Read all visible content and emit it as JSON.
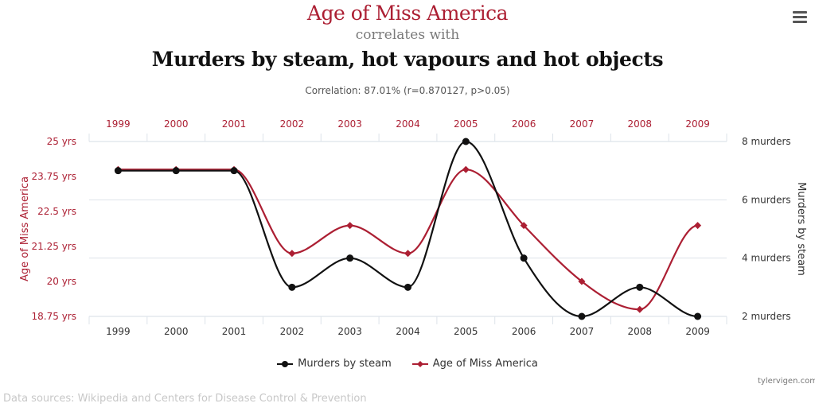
{
  "header": {
    "title_primary": "Age of Miss America",
    "connector": "correlates with",
    "title_secondary": "Murders by steam, hot vapours and hot objects",
    "correlation": "Correlation: 87.01% (r=0.870127, p>0.05)"
  },
  "menu": {
    "icon": "hamburger-menu-icon"
  },
  "colors": {
    "miss_america": "#ac1f33",
    "murders": "#111111",
    "grid": "#dde3ea",
    "axis_red_text": "#ac1f33",
    "axis_dark_text": "#333333"
  },
  "legend": {
    "items": [
      {
        "label": "Murders by steam",
        "color": "#111111",
        "marker": "circle"
      },
      {
        "label": "Age of Miss America",
        "color": "#ac1f33",
        "marker": "diamond"
      }
    ]
  },
  "footer": {
    "sources": "Data sources: Wikipedia and Centers for Disease Control & Prevention",
    "site": "tylervigen.com"
  },
  "chart_data": {
    "type": "line",
    "title": "Age of Miss America correlates with Murders by steam, hot vapours and hot objects",
    "subtitle": "Correlation: 87.01% (r=0.870127, p>0.05)",
    "categories": [
      "1999",
      "2000",
      "2001",
      "2002",
      "2003",
      "2004",
      "2005",
      "2006",
      "2007",
      "2008",
      "2009"
    ],
    "series": [
      {
        "name": "Murders by steam",
        "axis": "right",
        "color": "#111111",
        "values": [
          7,
          7,
          7,
          3,
          4,
          3,
          8,
          4,
          2,
          3,
          2
        ]
      },
      {
        "name": "Age of Miss America",
        "axis": "left",
        "color": "#ac1f33",
        "values": [
          24,
          24,
          24,
          21,
          22,
          21,
          24,
          22,
          20,
          19,
          22
        ]
      }
    ],
    "left_axis": {
      "label": "Age of Miss America",
      "range": [
        18.75,
        25
      ],
      "ticks": [
        25,
        23.75,
        22.5,
        21.25,
        20,
        18.75
      ],
      "tick_labels": [
        "25 yrs",
        "23.75 yrs",
        "22.5 yrs",
        "21.25 yrs",
        "20 yrs",
        "18.75 yrs"
      ]
    },
    "right_axis": {
      "label": "Murders by steam",
      "range": [
        2,
        8
      ],
      "ticks": [
        8,
        6,
        4,
        2
      ],
      "tick_labels": [
        "8 murders",
        "6 murders",
        "4 murders",
        "2 murders"
      ]
    },
    "x_axis_top_labels": [
      "1999",
      "2000",
      "2001",
      "2002",
      "2003",
      "2004",
      "2005",
      "2006",
      "2007",
      "2008",
      "2009"
    ],
    "x_axis_bottom_labels": [
      "1999",
      "2000",
      "2001",
      "2002",
      "2003",
      "2004",
      "2005",
      "2006",
      "2007",
      "2008",
      "2009"
    ],
    "grid": true,
    "legend_position": "bottom-center"
  }
}
